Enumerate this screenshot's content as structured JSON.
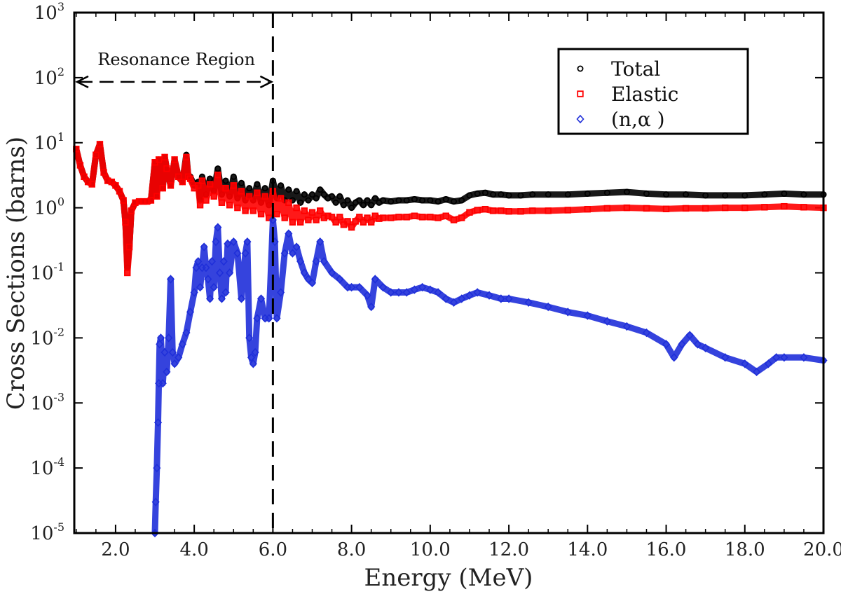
{
  "chart_data": {
    "type": "scatter",
    "title": "",
    "xlabel": "Energy (MeV)",
    "ylabel": "Cross Sections (barns)",
    "xlim": [
      0.95,
      20.0
    ],
    "ylim": [
      1e-05,
      1000.0
    ],
    "yscale": "log",
    "x_ticks": [
      2.0,
      4.0,
      6.0,
      8.0,
      10.0,
      12.0,
      14.0,
      16.0,
      18.0,
      20.0
    ],
    "x_tick_labels": [
      "2.0",
      "4.0",
      "6.0",
      "8.0",
      "10.0",
      "12.0",
      "14.0",
      "16.0",
      "18.0",
      "20.0"
    ],
    "y_ticks": [
      {
        "value": 1e-05,
        "base": "10",
        "exp": "-5"
      },
      {
        "value": 0.0001,
        "base": "10",
        "exp": "-4"
      },
      {
        "value": 0.001,
        "base": "10",
        "exp": "-3"
      },
      {
        "value": 0.01,
        "base": "10",
        "exp": "-2"
      },
      {
        "value": 0.1,
        "base": "10",
        "exp": "-1"
      },
      {
        "value": 1,
        "base": "10",
        "exp": "0"
      },
      {
        "value": 10,
        "base": "10",
        "exp": "1"
      },
      {
        "value": 100,
        "base": "10",
        "exp": "2"
      },
      {
        "value": 1000,
        "base": "10",
        "exp": "3"
      }
    ],
    "legend_position": "top-right",
    "annotation": {
      "text": "Resonance Region",
      "boundary_x": 6.0,
      "arrow_y": 100
    },
    "series": [
      {
        "name": "Total",
        "marker": "circle",
        "color": "#000000",
        "x": [
          1.0,
          1.1,
          1.2,
          1.3,
          1.4,
          1.5,
          1.6,
          1.7,
          1.8,
          1.9,
          2.0,
          2.1,
          2.2,
          2.25,
          2.3,
          2.35,
          2.4,
          2.5,
          2.6,
          2.7,
          2.8,
          2.9,
          3.0,
          3.05,
          3.1,
          3.2,
          3.25,
          3.3,
          3.4,
          3.5,
          3.6,
          3.7,
          3.8,
          3.85,
          3.9,
          4.0,
          4.1,
          4.15,
          4.2,
          4.3,
          4.4,
          4.5,
          4.6,
          4.7,
          4.8,
          4.9,
          5.0,
          5.1,
          5.2,
          5.3,
          5.4,
          5.5,
          5.6,
          5.7,
          5.8,
          5.9,
          6.0,
          6.1,
          6.2,
          6.3,
          6.4,
          6.5,
          6.6,
          6.7,
          6.8,
          6.9,
          7.0,
          7.1,
          7.2,
          7.3,
          7.4,
          7.5,
          7.6,
          7.7,
          7.8,
          7.9,
          8.0,
          8.1,
          8.2,
          8.3,
          8.4,
          8.5,
          8.6,
          8.7,
          8.8,
          9.0,
          9.2,
          9.4,
          9.6,
          9.8,
          10.0,
          10.2,
          10.4,
          10.6,
          10.8,
          11.0,
          11.2,
          11.4,
          11.6,
          11.8,
          12.0,
          12.3,
          12.6,
          13.0,
          13.5,
          14.0,
          14.5,
          15.0,
          15.5,
          16.0,
          16.5,
          17.0,
          17.5,
          18.0,
          18.5,
          19.0,
          19.5,
          20.0
        ],
        "y": [
          8.0,
          4.5,
          3.0,
          2.5,
          2.3,
          6.5,
          9.5,
          3.5,
          2.6,
          2.5,
          2.2,
          1.8,
          1.3,
          0.6,
          0.12,
          0.25,
          0.9,
          1.2,
          1.25,
          1.25,
          1.25,
          1.3,
          5.0,
          1.5,
          5.5,
          2.0,
          6.0,
          4.0,
          2.2,
          5.5,
          3.0,
          2.5,
          6.5,
          3.0,
          3.0,
          2.2,
          2.5,
          1.3,
          3.0,
          1.6,
          2.8,
          1.8,
          4.0,
          1.6,
          2.6,
          1.5,
          3.0,
          1.4,
          2.4,
          1.3,
          2.0,
          1.3,
          2.3,
          1.2,
          2.0,
          1.1,
          2.6,
          1.4,
          2.2,
          1.3,
          1.9,
          1.3,
          1.8,
          1.2,
          1.6,
          1.3,
          1.6,
          1.4,
          1.9,
          1.6,
          1.4,
          1.5,
          1.2,
          1.5,
          1.1,
          1.3,
          1.0,
          1.2,
          1.3,
          1.1,
          1.3,
          1.1,
          1.4,
          1.2,
          1.3,
          1.25,
          1.3,
          1.3,
          1.35,
          1.3,
          1.3,
          1.25,
          1.35,
          1.25,
          1.3,
          1.55,
          1.65,
          1.7,
          1.6,
          1.6,
          1.55,
          1.55,
          1.6,
          1.6,
          1.6,
          1.65,
          1.7,
          1.75,
          1.65,
          1.6,
          1.6,
          1.55,
          1.55,
          1.55,
          1.6,
          1.65,
          1.6,
          1.6
        ]
      },
      {
        "name": "Elastic",
        "marker": "square",
        "color": "#ff0000",
        "x": [
          1.0,
          1.1,
          1.2,
          1.3,
          1.4,
          1.5,
          1.6,
          1.7,
          1.8,
          1.9,
          2.0,
          2.1,
          2.2,
          2.25,
          2.3,
          2.35,
          2.4,
          2.5,
          2.6,
          2.7,
          2.8,
          2.9,
          3.0,
          3.05,
          3.1,
          3.2,
          3.25,
          3.3,
          3.4,
          3.5,
          3.6,
          3.7,
          3.8,
          3.85,
          3.9,
          4.0,
          4.1,
          4.15,
          4.2,
          4.3,
          4.4,
          4.5,
          4.6,
          4.7,
          4.8,
          4.9,
          5.0,
          5.1,
          5.2,
          5.3,
          5.4,
          5.5,
          5.6,
          5.7,
          5.8,
          5.9,
          6.0,
          6.1,
          6.2,
          6.3,
          6.4,
          6.5,
          6.6,
          6.7,
          6.8,
          6.9,
          7.0,
          7.1,
          7.2,
          7.3,
          7.4,
          7.5,
          7.6,
          7.7,
          7.8,
          7.9,
          8.0,
          8.1,
          8.2,
          8.3,
          8.4,
          8.5,
          8.6,
          8.7,
          8.8,
          9.0,
          9.2,
          9.4,
          9.6,
          9.8,
          10.0,
          10.2,
          10.4,
          10.6,
          10.8,
          11.0,
          11.2,
          11.4,
          11.6,
          11.8,
          12.0,
          12.3,
          12.6,
          13.0,
          13.5,
          14.0,
          14.5,
          15.0,
          15.5,
          16.0,
          16.5,
          17.0,
          17.5,
          18.0,
          18.5,
          19.0,
          19.5,
          20.0
        ],
        "y": [
          8.0,
          4.5,
          3.0,
          2.5,
          2.3,
          6.5,
          9.5,
          3.5,
          2.6,
          2.5,
          2.2,
          1.8,
          1.3,
          0.6,
          0.1,
          0.25,
          0.9,
          1.2,
          1.25,
          1.25,
          1.25,
          1.3,
          5.0,
          1.5,
          5.5,
          2.0,
          6.0,
          4.0,
          2.2,
          5.5,
          3.0,
          2.5,
          6.0,
          3.0,
          2.8,
          2.0,
          2.2,
          1.1,
          2.6,
          1.3,
          2.3,
          1.5,
          3.2,
          1.2,
          2.0,
          1.1,
          2.2,
          1.0,
          1.8,
          0.9,
          1.5,
          0.9,
          1.7,
          0.8,
          1.5,
          0.7,
          1.8,
          0.8,
          1.4,
          0.7,
          1.2,
          0.6,
          1.0,
          0.6,
          0.9,
          0.65,
          0.85,
          0.65,
          0.9,
          0.7,
          0.75,
          0.72,
          0.6,
          0.72,
          0.55,
          0.62,
          0.5,
          0.62,
          0.72,
          0.6,
          0.7,
          0.6,
          0.75,
          0.68,
          0.7,
          0.7,
          0.72,
          0.72,
          0.75,
          0.72,
          0.72,
          0.7,
          0.75,
          0.65,
          0.7,
          0.85,
          0.92,
          0.95,
          0.9,
          0.9,
          0.88,
          0.88,
          0.9,
          0.9,
          0.92,
          0.95,
          0.98,
          1.0,
          0.98,
          0.96,
          0.98,
          0.98,
          1.0,
          1.0,
          1.02,
          1.05,
          1.02,
          1.0
        ]
      },
      {
        "name": "(n,α )",
        "marker": "diamond",
        "color": "#1f2fd9",
        "x": [
          3.0,
          3.02,
          3.05,
          3.08,
          3.1,
          3.12,
          3.15,
          3.2,
          3.25,
          3.3,
          3.35,
          3.4,
          3.45,
          3.5,
          3.6,
          3.7,
          3.8,
          3.9,
          4.0,
          4.05,
          4.1,
          4.15,
          4.2,
          4.25,
          4.3,
          4.35,
          4.4,
          4.45,
          4.5,
          4.55,
          4.6,
          4.65,
          4.7,
          4.75,
          4.8,
          4.85,
          4.9,
          5.0,
          5.1,
          5.2,
          5.3,
          5.35,
          5.4,
          5.45,
          5.5,
          5.55,
          5.6,
          5.7,
          5.8,
          5.9,
          6.0,
          6.05,
          6.1,
          6.2,
          6.3,
          6.4,
          6.5,
          6.6,
          6.7,
          6.8,
          6.9,
          7.0,
          7.1,
          7.2,
          7.3,
          7.5,
          7.7,
          7.9,
          8.0,
          8.2,
          8.4,
          8.5,
          8.6,
          8.8,
          9.0,
          9.2,
          9.4,
          9.6,
          9.8,
          10.0,
          10.2,
          10.4,
          10.6,
          10.8,
          11.0,
          11.2,
          11.5,
          11.8,
          12.0,
          12.5,
          13.0,
          13.5,
          14.0,
          14.5,
          15.0,
          15.5,
          16.0,
          16.2,
          16.4,
          16.6,
          16.8,
          17.0,
          17.5,
          18.0,
          18.3,
          18.6,
          18.8,
          19.0,
          19.5,
          20.0
        ],
        "y": [
          1e-05,
          3e-05,
          0.0001,
          0.0005,
          0.002,
          0.008,
          0.01,
          0.002,
          0.006,
          0.003,
          0.01,
          0.08,
          0.006,
          0.004,
          0.005,
          0.008,
          0.012,
          0.025,
          0.05,
          0.12,
          0.15,
          0.06,
          0.12,
          0.25,
          0.12,
          0.08,
          0.04,
          0.15,
          0.06,
          0.3,
          0.5,
          0.1,
          0.04,
          0.15,
          0.05,
          0.28,
          0.1,
          0.3,
          0.2,
          0.04,
          0.2,
          0.3,
          0.01,
          0.005,
          0.004,
          0.006,
          0.02,
          0.04,
          0.02,
          0.02,
          0.65,
          0.3,
          0.02,
          0.05,
          0.2,
          0.4,
          0.2,
          0.25,
          0.15,
          0.1,
          0.08,
          0.07,
          0.15,
          0.3,
          0.15,
          0.1,
          0.08,
          0.06,
          0.06,
          0.06,
          0.045,
          0.03,
          0.08,
          0.06,
          0.05,
          0.05,
          0.05,
          0.055,
          0.06,
          0.055,
          0.05,
          0.04,
          0.035,
          0.04,
          0.045,
          0.05,
          0.045,
          0.04,
          0.04,
          0.035,
          0.03,
          0.025,
          0.022,
          0.018,
          0.015,
          0.012,
          0.008,
          0.005,
          0.008,
          0.011,
          0.008,
          0.007,
          0.005,
          0.004,
          0.003,
          0.004,
          0.005,
          0.005,
          0.005,
          0.0045
        ]
      }
    ]
  }
}
